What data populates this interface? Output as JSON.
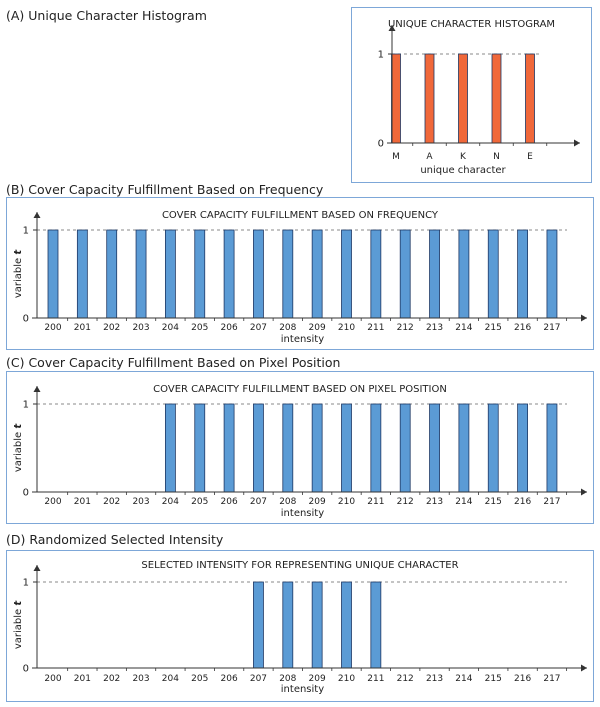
{
  "headings": {
    "a": "(A) Unique Character Histogram",
    "b": "(B) Cover Capacity Fulfillment Based on Frequency",
    "c": "(C) Cover Capacity Fulfillment Based on Pixel Position",
    "d": "(D) Randomized Selected Intensity"
  },
  "colors": {
    "panel_border": "#7da7d8",
    "bar_blue": "#5b9bd5",
    "bar_orange": "#f0683a",
    "bar_stroke": "#1f3864"
  },
  "chart_data": [
    {
      "id": "a",
      "type": "bar",
      "title": "UNIQUE CHARACTER HISTOGRAM",
      "xlabel": "unique character",
      "ylabel": "",
      "categories": [
        "M",
        "A",
        "K",
        "N",
        "E"
      ],
      "values": [
        1,
        1,
        1,
        1,
        1
      ],
      "yticks": [
        "0",
        "1"
      ],
      "ylim": [
        0,
        1
      ],
      "bar_color": "#f0683a",
      "reference_line": 1
    },
    {
      "id": "b",
      "type": "bar",
      "title": "COVER CAPACITY FULFILLMENT BASED ON FREQUENCY",
      "xlabel": "intensity",
      "ylabel_prefix": "variable ",
      "ylabel_var": "t",
      "categories": [
        "200",
        "201",
        "202",
        "203",
        "204",
        "205",
        "206",
        "207",
        "208",
        "209",
        "210",
        "211",
        "212",
        "213",
        "214",
        "215",
        "216",
        "217"
      ],
      "values": [
        1,
        1,
        1,
        1,
        1,
        1,
        1,
        1,
        1,
        1,
        1,
        1,
        1,
        1,
        1,
        1,
        1,
        1
      ],
      "yticks": [
        "0",
        "1"
      ],
      "ylim": [
        0,
        1
      ],
      "bar_color": "#5b9bd5",
      "reference_line": 1
    },
    {
      "id": "c",
      "type": "bar",
      "title": "COVER CAPACITY FULFILLMENT BASED ON PIXEL POSITION",
      "xlabel": "intensity",
      "ylabel_prefix": "variable ",
      "ylabel_var": "t",
      "categories": [
        "200",
        "201",
        "202",
        "203",
        "204",
        "205",
        "206",
        "207",
        "208",
        "209",
        "210",
        "211",
        "212",
        "213",
        "214",
        "215",
        "216",
        "217"
      ],
      "values": [
        0,
        0,
        0,
        0,
        1,
        1,
        1,
        1,
        1,
        1,
        1,
        1,
        1,
        1,
        1,
        1,
        1,
        1
      ],
      "yticks": [
        "0",
        "1"
      ],
      "ylim": [
        0,
        1
      ],
      "bar_color": "#5b9bd5",
      "reference_line": 1
    },
    {
      "id": "d",
      "type": "bar",
      "title": "SELECTED INTENSITY FOR REPRESENTING UNIQUE CHARACTER",
      "xlabel": "intensity",
      "ylabel_prefix": "variable ",
      "ylabel_var": "t",
      "categories": [
        "200",
        "201",
        "202",
        "203",
        "204",
        "205",
        "206",
        "207",
        "208",
        "209",
        "210",
        "211",
        "212",
        "213",
        "214",
        "215",
        "216",
        "217"
      ],
      "values": [
        0,
        0,
        0,
        0,
        0,
        0,
        0,
        1,
        1,
        1,
        1,
        1,
        0,
        0,
        0,
        0,
        0,
        0
      ],
      "yticks": [
        "0",
        "1"
      ],
      "ylim": [
        0,
        1
      ],
      "bar_color": "#5b9bd5",
      "reference_line": 1
    }
  ]
}
